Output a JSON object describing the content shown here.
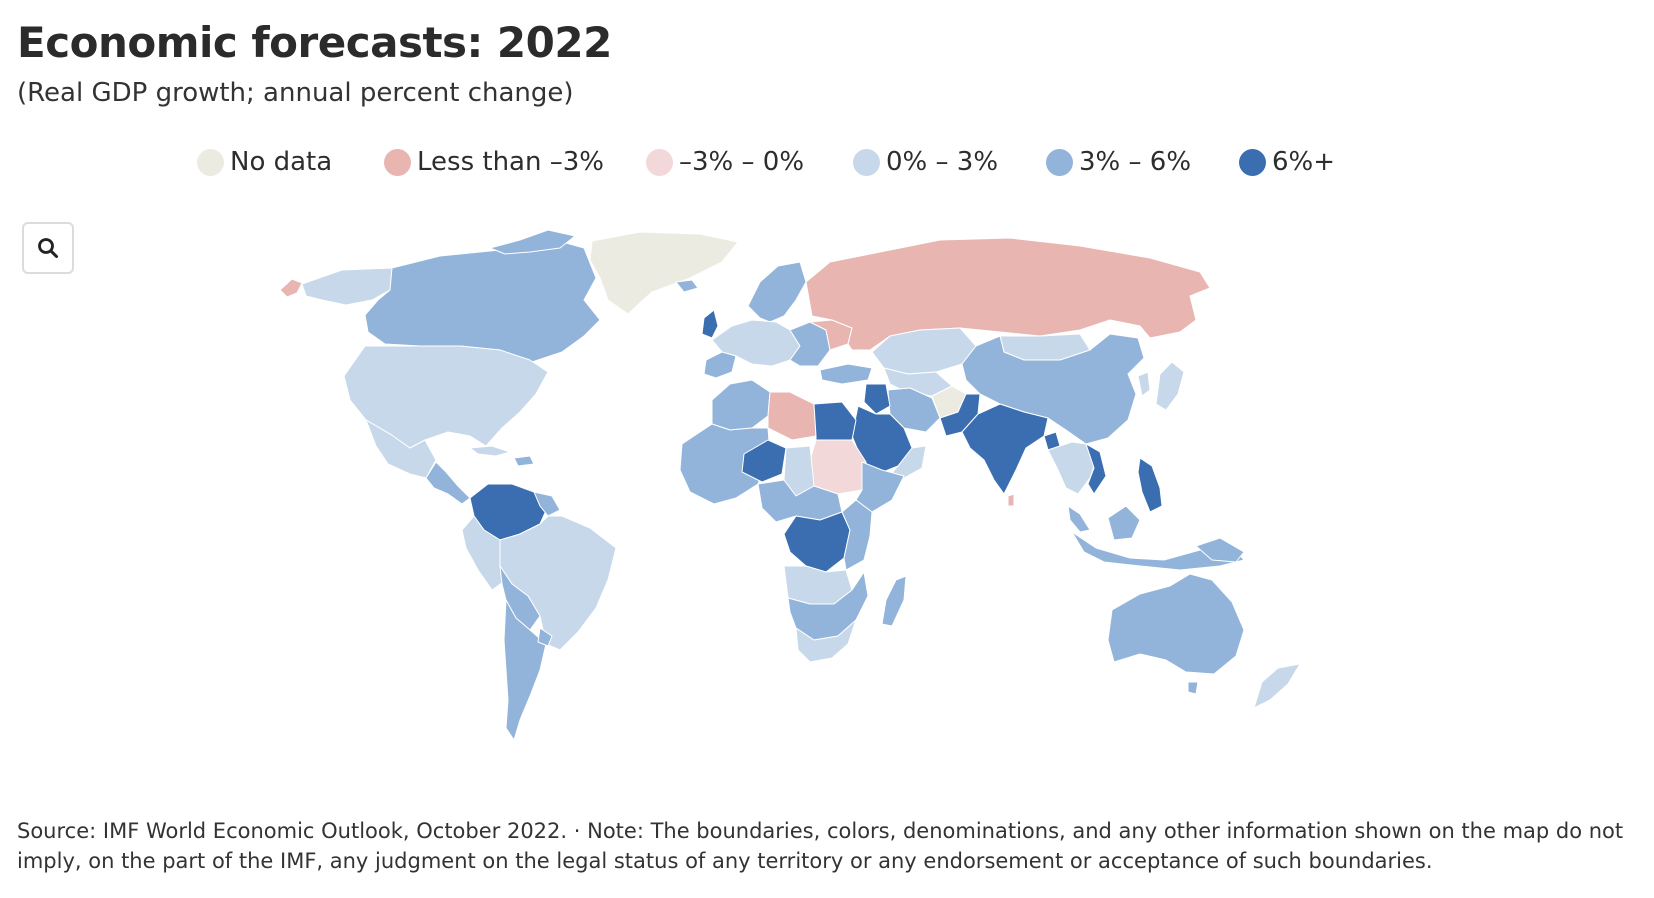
{
  "header": {
    "title": "Economic forecasts: 2022",
    "subtitle": "(Real GDP growth; annual percent change)"
  },
  "legend": {
    "items": [
      {
        "label": "No data",
        "color": "#ecebe2"
      },
      {
        "label": "Less than –3%",
        "color": "#e8b5b1"
      },
      {
        "label": "–3% – 0%",
        "color": "#f2d8d8"
      },
      {
        "label": "0% – 3%",
        "color": "#c7d8ea"
      },
      {
        "label": "3% – 6%",
        "color": "#92b3da"
      },
      {
        "label": "6%+",
        "color": "#3a6eb0"
      }
    ]
  },
  "toolbar": {
    "zoom_icon": "search-icon"
  },
  "map": {
    "colors": {
      "no_data": "#ecebe2",
      "lt_minus3": "#e8b5b1",
      "minus3_0": "#f2d8d8",
      "zero_3": "#c7d8ea",
      "three_6": "#92b3da",
      "six_plus": "#3a6eb0",
      "border": "#ffffff"
    }
  },
  "footer": {
    "source_note": "Source: IMF World Economic Outlook, October 2022. · Note: The boundaries, colors, denominations, and any other information shown on the map do not imply, on the part of the IMF, any judgment on the legal status of any territory or any endorsement or acceptance of such boundaries."
  }
}
